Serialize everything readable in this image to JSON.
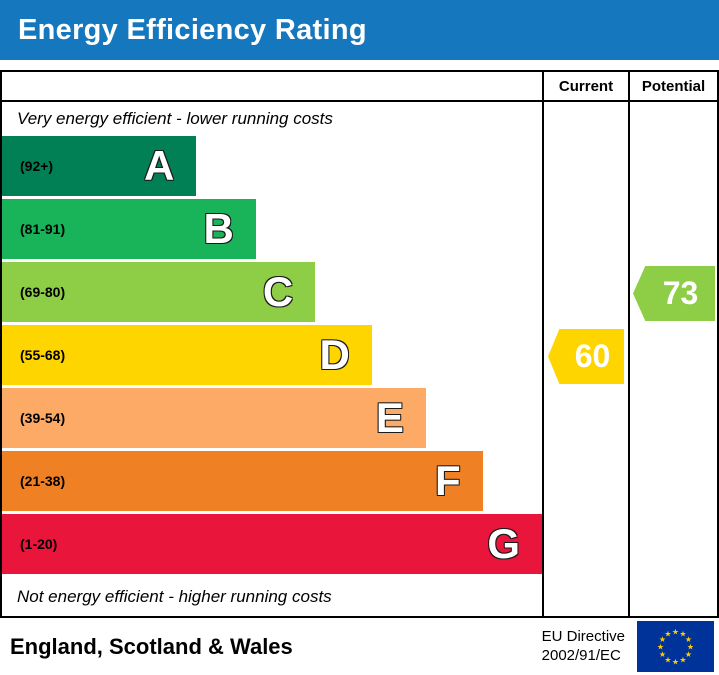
{
  "header": {
    "title": "Energy Efficiency Rating",
    "bg_color": "#1577bd"
  },
  "columns": {
    "current_label": "Current",
    "potential_label": "Potential"
  },
  "notes": {
    "top": "Very energy efficient - lower running costs",
    "bottom": "Not energy efficient - higher running costs"
  },
  "chart_data": {
    "type": "bar",
    "title": "Energy Efficiency Rating",
    "bands": [
      {
        "letter": "A",
        "range": "(92+)",
        "color": "#008054",
        "width_pct": 36
      },
      {
        "letter": "B",
        "range": "(81-91)",
        "color": "#19b459",
        "width_pct": 47
      },
      {
        "letter": "C",
        "range": "(69-80)",
        "color": "#8dce46",
        "width_pct": 58
      },
      {
        "letter": "D",
        "range": "(55-68)",
        "color": "#ffd500",
        "width_pct": 68.5
      },
      {
        "letter": "E",
        "range": "(39-54)",
        "color": "#fcaa65",
        "width_pct": 78.5
      },
      {
        "letter": "F",
        "range": "(21-38)",
        "color": "#ef8023",
        "width_pct": 89
      },
      {
        "letter": "G",
        "range": "(1-20)",
        "color": "#e9153b",
        "width_pct": 100
      }
    ],
    "current": {
      "value": 60,
      "band": "D",
      "band_index": 3,
      "color": "#ffd500"
    },
    "potential": {
      "value": 73,
      "band": "C",
      "band_index": 2,
      "color": "#8dce46"
    }
  },
  "footer": {
    "region": "England, Scotland & Wales",
    "directive_line1": "EU Directive",
    "directive_line2": "2002/91/EC"
  }
}
